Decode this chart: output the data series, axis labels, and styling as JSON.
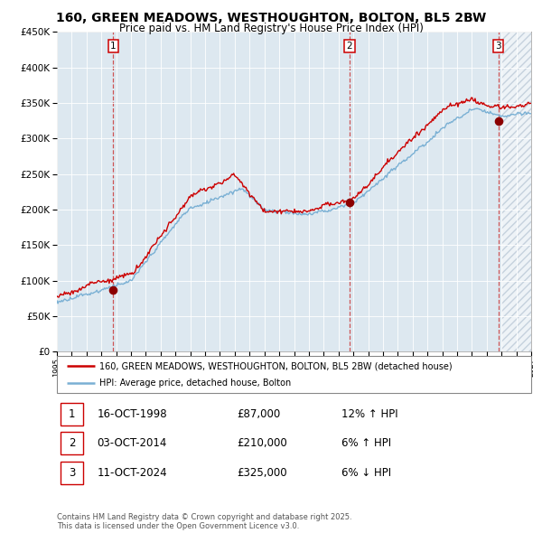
{
  "title_line1": "160, GREEN MEADOWS, WESTHOUGHTON, BOLTON, BL5 2BW",
  "title_line2": "Price paid vs. HM Land Registry's House Price Index (HPI)",
  "ytick_values": [
    0,
    50000,
    100000,
    150000,
    200000,
    250000,
    300000,
    350000,
    400000,
    450000
  ],
  "xlim_start": 1995.0,
  "xlim_end": 2027.0,
  "ylim_min": 0,
  "ylim_max": 450000,
  "hpi_line_color": "#7ab0d4",
  "price_line_color": "#cc0000",
  "sale_marker_color": "#8b0000",
  "dashed_line_color": "#cc4444",
  "chart_bg_color": "#dde8f0",
  "sale_points": [
    {
      "year": 1998.79,
      "price": 87000,
      "label": "1"
    },
    {
      "year": 2014.75,
      "price": 210000,
      "label": "2"
    },
    {
      "year": 2024.79,
      "price": 325000,
      "label": "3"
    }
  ],
  "legend_label_red": "160, GREEN MEADOWS, WESTHOUGHTON, BOLTON, BL5 2BW (detached house)",
  "legend_label_blue": "HPI: Average price, detached house, Bolton",
  "table_rows": [
    {
      "num": "1",
      "date": "16-OCT-1998",
      "price": "£87,000",
      "hpi": "12% ↑ HPI"
    },
    {
      "num": "2",
      "date": "03-OCT-2014",
      "price": "£210,000",
      "hpi": "6% ↑ HPI"
    },
    {
      "num": "3",
      "date": "11-OCT-2024",
      "price": "£325,000",
      "hpi": "6% ↓ HPI"
    }
  ],
  "footnote": "Contains HM Land Registry data © Crown copyright and database right 2025.\nThis data is licensed under the Open Government Licence v3.0.",
  "background_color": "#ffffff",
  "grid_color": "#ffffff",
  "hatching_color": "#c0cfe0"
}
